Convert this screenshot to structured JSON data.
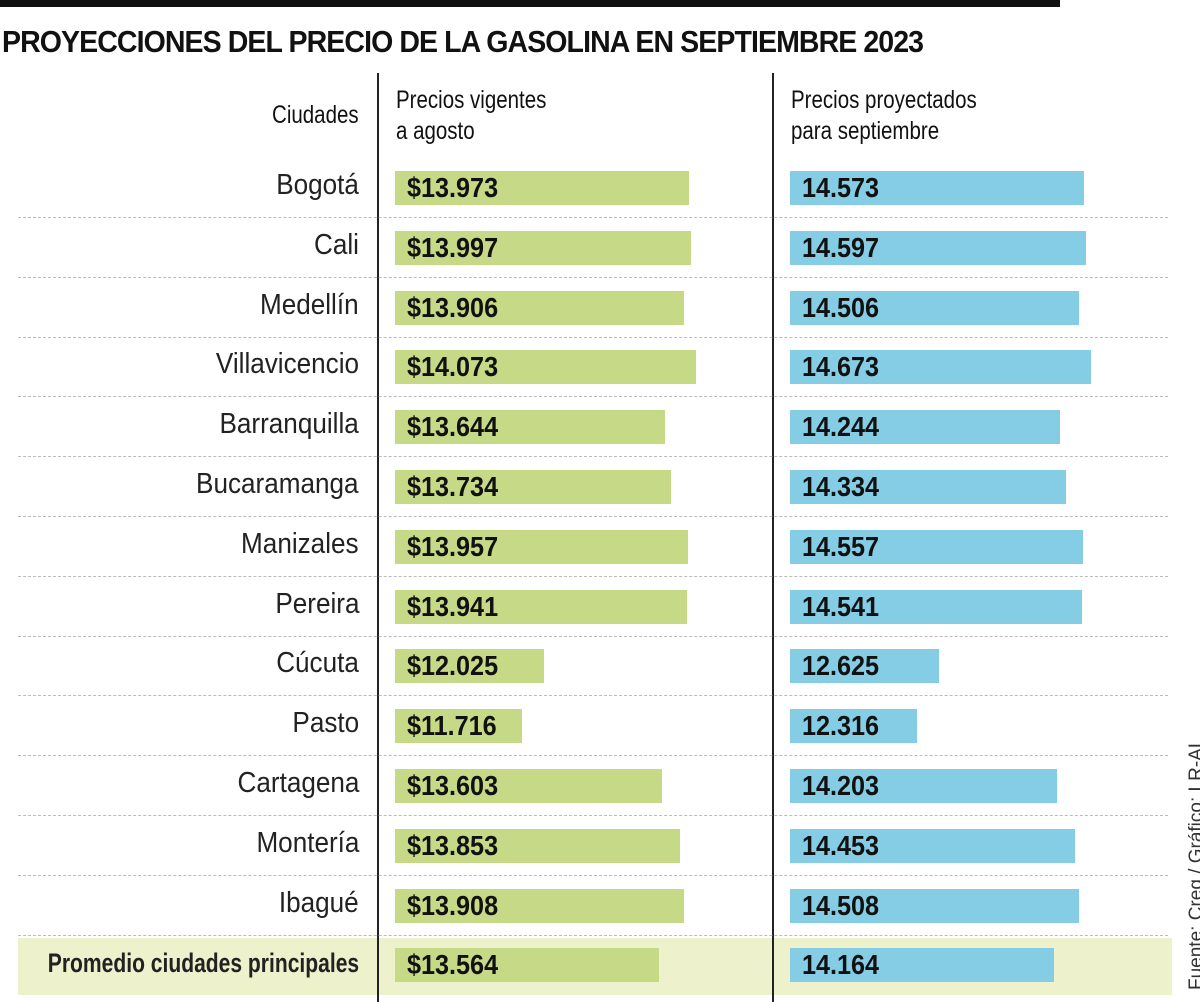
{
  "chart_data": {
    "type": "bar",
    "title": "PROYECCIONES DEL PRECIO DE LA GASOLINA EN SEPTIEMBRE 2023",
    "category_header": "Ciudades",
    "categories": [
      "Bogotá",
      "Cali",
      "Medellín",
      "Villavicencio",
      "Barranquilla",
      "Bucaramanga",
      "Manizales",
      "Pereira",
      "Cúcuta",
      "Pasto",
      "Cartagena",
      "Montería",
      "Ibagué",
      "Promedio ciudades principales"
    ],
    "series": [
      {
        "name": "Precios vigentes a agosto",
        "name_lines": [
          "Precios vigentes",
          "a agosto"
        ],
        "prefix": "$",
        "color": "#c5d986",
        "values": [
          13973,
          13997,
          13906,
          14073,
          13644,
          13734,
          13957,
          13941,
          12025,
          11716,
          13603,
          13853,
          13908,
          13564
        ],
        "labels": [
          "$13.973",
          "$13.997",
          "$13.906",
          "$14.073",
          "$13.644",
          "$13.734",
          "$13.957",
          "$13.941",
          "$12.025",
          "$11.716",
          "$13.603",
          "$13.853",
          "$13.908",
          "$13.564"
        ]
      },
      {
        "name": "Precios proyectados para septiembre",
        "name_lines": [
          "Precios proyectados",
          "para septiembre"
        ],
        "prefix": "",
        "color": "#84cde4",
        "values": [
          14573,
          14597,
          14506,
          14673,
          14244,
          14334,
          14557,
          14541,
          12625,
          12316,
          14203,
          14453,
          14508,
          14164
        ],
        "labels": [
          "14.573",
          "14.597",
          "14.506",
          "14.673",
          "14.244",
          "14.334",
          "14.557",
          "14.541",
          "12.625",
          "12.316",
          "14.203",
          "14.453",
          "14.508",
          "14.164"
        ]
      }
    ],
    "highlight_row_color": "#eef2cc",
    "source": "Fuente: Creg / Gráfico: LR-AL"
  }
}
